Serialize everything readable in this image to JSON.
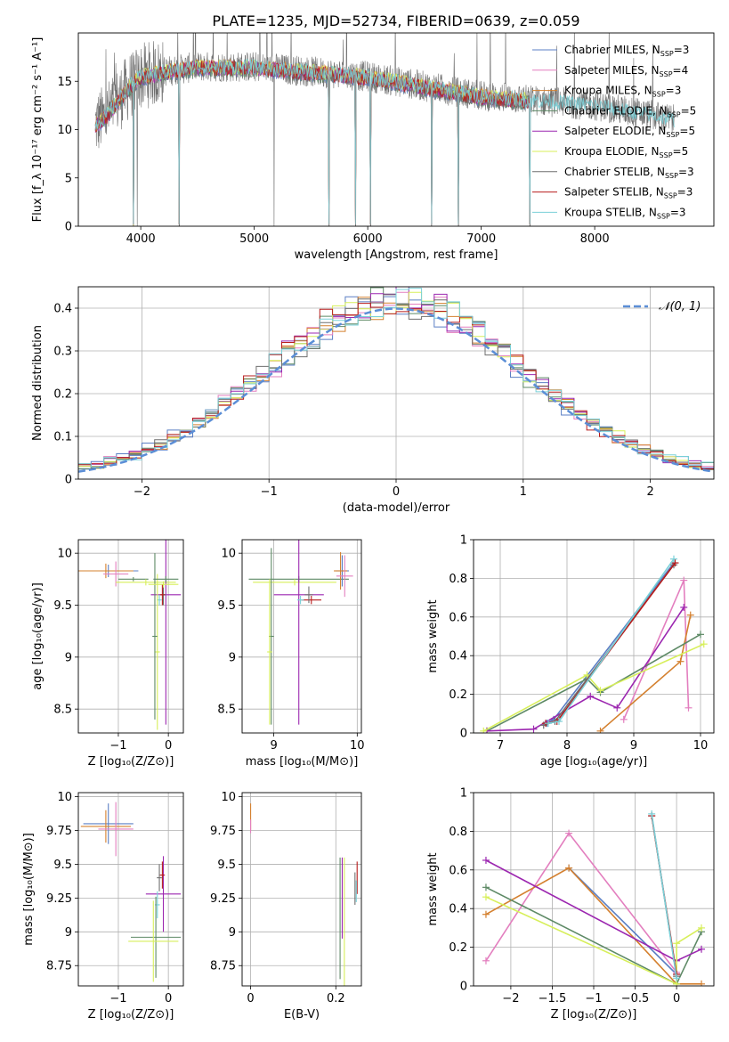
{
  "figure_title": "PLATE=1235, MJD=52734, FIBERID=0639, z=0.059",
  "colors": {
    "Chabrier MILES": "#5b7fc4",
    "Salpeter MILES": "#e37fbf",
    "Kroupa MILES": "#d4802f",
    "Chabrier ELODIE": "#5e8a66",
    "Salpeter ELODIE": "#9c27b0",
    "Kroupa ELODIE": "#d7ef5a",
    "Chabrier STELIB": "#6f6f6f",
    "Salpeter STELIB": "#b71c1c",
    "Kroupa STELIB": "#79d0d8",
    "normal": "#5b8ed6",
    "grid": "#b0b0b0"
  },
  "chart_data": [
    {
      "id": "spectrum",
      "type": "line",
      "title": "PLATE=1235, MJD=52734, FIBERID=0639, z=0.059",
      "xlabel": "wavelength [Angstrom, rest frame]",
      "ylabel": "Flux [f_λ 10⁻¹⁷ erg cm⁻² s⁻¹ A⁻¹]",
      "xlim": [
        3450,
        9050
      ],
      "ylim": [
        0,
        20
      ],
      "xticks": [
        4000,
        5000,
        6000,
        7000,
        8000
      ],
      "yticks": [
        0,
        5,
        10,
        15
      ],
      "grid": false,
      "legend_position": "top-right",
      "legend": [
        {
          "base": "Chabrier MILES, N",
          "sub": "SSP",
          "tail": "=3",
          "color_key": "Chabrier MILES"
        },
        {
          "base": "Salpeter MILES, N",
          "sub": "SSP",
          "tail": "=4",
          "color_key": "Salpeter MILES"
        },
        {
          "base": "Kroupa MILES, N",
          "sub": "SSP",
          "tail": "=3",
          "color_key": "Kroupa MILES"
        },
        {
          "base": "Chabrier ELODIE, N",
          "sub": "SSP",
          "tail": "=5",
          "color_key": "Chabrier ELODIE"
        },
        {
          "base": "Salpeter ELODIE, N",
          "sub": "SSP",
          "tail": "=5",
          "color_key": "Salpeter ELODIE"
        },
        {
          "base": "Kroupa ELODIE, N",
          "sub": "SSP",
          "tail": "=5",
          "color_key": "Kroupa ELODIE"
        },
        {
          "base": "Chabrier STELIB, N",
          "sub": "SSP",
          "tail": "=3",
          "color_key": "Chabrier STELIB"
        },
        {
          "base": "Salpeter STELIB, N",
          "sub": "SSP",
          "tail": "=3",
          "color_key": "Salpeter STELIB"
        },
        {
          "base": "Kroupa STELIB, N",
          "sub": "SSP",
          "tail": "=3",
          "color_key": "Kroupa STELIB"
        }
      ],
      "data_envelope": {
        "x": [
          3600,
          3700,
          3800,
          3900,
          4000,
          4200,
          4500,
          5000,
          5500,
          6000,
          6500,
          7000,
          7500,
          8000,
          8500,
          8700
        ],
        "y": [
          10.5,
          11.5,
          13,
          14.5,
          15.5,
          16,
          16.5,
          16.5,
          16,
          15.5,
          14.5,
          13.5,
          13,
          12.5,
          11.5,
          11
        ]
      },
      "models_x_range": [
        3600,
        7430
      ],
      "kroupa_stelib_x_range": [
        3600,
        8700
      ],
      "absorption_lines": [
        3934,
        3969,
        4340,
        5175,
        5660,
        5893,
        6025,
        6563,
        6800,
        7430
      ]
    },
    {
      "id": "residual-distribution",
      "type": "line",
      "xlabel": "(data-model)/error",
      "ylabel": "Normed distribution",
      "xlim": [
        -2.5,
        2.5
      ],
      "ylim": [
        0,
        0.45
      ],
      "xticks": [
        -2,
        -1,
        0,
        1,
        2
      ],
      "yticks": [
        0.0,
        0.1,
        0.2,
        0.3,
        0.4
      ],
      "grid": true,
      "legend_position": "top-right",
      "normal_curve": {
        "label": "𝒩(0, 1)",
        "mean": 0,
        "sigma": 1,
        "style": "dashed"
      },
      "histogram": {
        "bin_width": 0.1,
        "range": [
          -2.5,
          2.5
        ],
        "follows": "gaussian with per-series scatter"
      }
    },
    {
      "id": "age-vs-Z",
      "type": "scatter",
      "xlabel": "Z [log₁₀(Z/Z⊙)]",
      "ylabel": "age  [log₁₀(age/yr)]",
      "xlim": [
        -1.8,
        0.3
      ],
      "ylim": [
        8.27,
        10.13
      ],
      "xticks": [
        -1,
        0
      ],
      "yticks": [
        8.5,
        9.0,
        9.5,
        10.0
      ],
      "grid": true,
      "errorbars": [
        {
          "series": "Chabrier MILES",
          "x": -1.2,
          "xerr": 0.6,
          "y": 9.83,
          "yerr": 0.06
        },
        {
          "series": "Kroupa MILES",
          "x": -1.25,
          "xerr": 0.55,
          "y": 9.83,
          "yerr": 0.07
        },
        {
          "series": "Salpeter MILES",
          "x": -1.05,
          "xerr": 0.25,
          "y": 9.8,
          "yerr": 0.12
        },
        {
          "series": "Chabrier ELODIE",
          "x": -0.7,
          "xerr": 0.3,
          "y": 9.75,
          "yerr": 0.02
        },
        {
          "series": "Kroupa ELODIE",
          "x": -0.45,
          "xerr": 0.6,
          "y": 9.72,
          "yerr": 0.03
        },
        {
          "series": "Salpeter ELODIE",
          "x": -0.05,
          "xerr": 0.3,
          "y": 9.6,
          "yerr": 1.25
        },
        {
          "series": "Chabrier STELIB",
          "x": -0.1,
          "xerr": 0.05,
          "y": 9.6,
          "yerr": 0.1
        },
        {
          "series": "Salpeter STELIB",
          "x": -0.12,
          "xerr": 0.05,
          "y": 9.6,
          "yerr": 0.1
        },
        {
          "series": "Kroupa STELIB",
          "x": -0.18,
          "xerr": 0.05,
          "y": 9.55,
          "yerr": 0.05
        },
        {
          "series": "Kroupa ELODIE",
          "x": -0.22,
          "xerr": 0.05,
          "y": 9.05,
          "yerr": 0.75
        },
        {
          "series": "Chabrier ELODIE",
          "x": -0.27,
          "xerr": 0.05,
          "y": 9.2,
          "yerr": 0.8
        },
        {
          "series": "Chabrier ELODIE",
          "x": -0.05,
          "xerr": 0.25,
          "y": 9.75,
          "yerr": 0.03
        },
        {
          "series": "Kroupa ELODIE",
          "x": -0.1,
          "xerr": 0.3,
          "y": 9.7,
          "yerr": 0.03
        }
      ]
    },
    {
      "id": "age-vs-mass",
      "type": "scatter",
      "xlabel": "mass [log₁₀(M/M⊙)]",
      "xlim": [
        8.62,
        10.05
      ],
      "ylim": [
        8.27,
        10.13
      ],
      "xticks": [
        9,
        10
      ],
      "yticks": [
        8.5,
        9.0,
        9.5,
        10.0
      ],
      "grid": true,
      "errorbars": [
        {
          "series": "Chabrier ELODIE",
          "x": 9.3,
          "xerr": 0.6,
          "y": 9.75,
          "yerr": 0.03
        },
        {
          "series": "Kroupa ELODIE",
          "x": 9.25,
          "xerr": 0.5,
          "y": 9.72,
          "yerr": 0.03
        },
        {
          "series": "Chabrier ELODIE",
          "x": 8.97,
          "xerr": 0.03,
          "y": 9.2,
          "yerr": 0.85
        },
        {
          "series": "Kroupa ELODIE",
          "x": 8.95,
          "xerr": 0.03,
          "y": 9.05,
          "yerr": 0.7
        },
        {
          "series": "Salpeter ELODIE",
          "x": 9.3,
          "xerr": 0.3,
          "y": 9.6,
          "yerr": 1.25
        },
        {
          "series": "Salpeter STELIB",
          "x": 9.45,
          "xerr": 0.12,
          "y": 9.55,
          "yerr": 0.04
        },
        {
          "series": "Chabrier STELIB",
          "x": 9.42,
          "xerr": 0.05,
          "y": 9.6,
          "yerr": 0.08
        },
        {
          "series": "Kroupa STELIB",
          "x": 9.32,
          "xerr": 0.04,
          "y": 9.55,
          "yerr": 0.04
        },
        {
          "series": "Chabrier MILES",
          "x": 9.82,
          "xerr": 0.08,
          "y": 9.83,
          "yerr": 0.15
        },
        {
          "series": "Kroupa MILES",
          "x": 9.8,
          "xerr": 0.08,
          "y": 9.83,
          "yerr": 0.18
        },
        {
          "series": "Salpeter MILES",
          "x": 9.85,
          "xerr": 0.1,
          "y": 9.78,
          "yerr": 0.2
        }
      ]
    },
    {
      "id": "mass-weight-vs-age",
      "type": "line",
      "xlabel": "age  [log₁₀(age/yr)]",
      "ylabel": "mass weight",
      "xlim": [
        6.6,
        10.2
      ],
      "ylim": [
        0,
        1
      ],
      "xticks": [
        7,
        8,
        9,
        10
      ],
      "yticks": [
        0.0,
        0.2,
        0.4,
        0.6,
        0.8,
        1.0
      ],
      "grid": true,
      "series": [
        {
          "name": "Chabrier MILES",
          "x": [
            7.7,
            7.8,
            9.6
          ],
          "y": [
            0.05,
            0.07,
            0.88
          ]
        },
        {
          "name": "Salpeter MILES",
          "x": [
            8.85,
            9.75,
            9.82
          ],
          "y": [
            0.07,
            0.79,
            0.13
          ]
        },
        {
          "name": "Kroupa MILES",
          "x": [
            8.5,
            9.7,
            9.85
          ],
          "y": [
            0.01,
            0.37,
            0.61
          ]
        },
        {
          "name": "Chabrier ELODIE",
          "x": [
            6.8,
            8.3,
            8.5,
            10.0
          ],
          "y": [
            0.01,
            0.28,
            0.21,
            0.51
          ]
        },
        {
          "name": "Salpeter ELODIE",
          "x": [
            6.8,
            7.5,
            8.35,
            8.75,
            9.75
          ],
          "y": [
            0.01,
            0.02,
            0.19,
            0.13,
            0.65
          ]
        },
        {
          "name": "Kroupa ELODIE",
          "x": [
            6.75,
            8.3,
            8.5,
            10.05
          ],
          "y": [
            0.01,
            0.3,
            0.22,
            0.46
          ]
        },
        {
          "name": "Chabrier STELIB",
          "x": [
            7.65,
            7.82,
            9.6
          ],
          "y": [
            0.04,
            0.06,
            0.87
          ]
        },
        {
          "name": "Salpeter STELIB",
          "x": [
            7.68,
            7.85,
            9.62
          ],
          "y": [
            0.05,
            0.06,
            0.88
          ]
        },
        {
          "name": "Kroupa STELIB",
          "x": [
            7.72,
            7.88,
            9.6
          ],
          "y": [
            0.05,
            0.06,
            0.9
          ]
        }
      ]
    },
    {
      "id": "mass-vs-Z",
      "type": "scatter",
      "xlabel": "Z [log₁₀(Z/Z⊙)]",
      "ylabel": "mass [log₁₀(M/M⊙)]",
      "xlim": [
        -1.8,
        0.3
      ],
      "ylim": [
        8.6,
        10.03
      ],
      "xticks": [
        -1,
        0
      ],
      "yticks": [
        8.75,
        9.0,
        9.25,
        9.5,
        9.75,
        10.0
      ],
      "grid": true,
      "errorbars": [
        {
          "series": "Chabrier MILES",
          "x": -1.2,
          "xerr": 0.5,
          "y": 9.8,
          "yerr": 0.15
        },
        {
          "series": "Kroupa MILES",
          "x": -1.25,
          "xerr": 0.5,
          "y": 9.78,
          "yerr": 0.12
        },
        {
          "series": "Salpeter MILES",
          "x": -1.05,
          "xerr": 0.35,
          "y": 9.76,
          "yerr": 0.2
        },
        {
          "series": "Salpeter ELODIE",
          "x": -0.1,
          "xerr": 0.35,
          "y": 9.28,
          "yerr": 0.28
        },
        {
          "series": "Salpeter STELIB",
          "x": -0.12,
          "xerr": 0.05,
          "y": 9.42,
          "yerr": 0.1
        },
        {
          "series": "Chabrier STELIB",
          "x": -0.18,
          "xerr": 0.05,
          "y": 9.4,
          "yerr": 0.1
        },
        {
          "series": "Kroupa STELIB",
          "x": -0.22,
          "xerr": 0.05,
          "y": 9.2,
          "yerr": 0.1
        },
        {
          "series": "Chabrier ELODIE",
          "x": -0.25,
          "xerr": 0.5,
          "y": 8.96,
          "yerr": 0.3
        },
        {
          "series": "Kroupa ELODIE",
          "x": -0.3,
          "xerr": 0.5,
          "y": 8.93,
          "yerr": 0.3
        }
      ]
    },
    {
      "id": "mass-vs-EBV",
      "type": "scatter",
      "xlabel": "E(B-V)",
      "xlim": [
        -0.02,
        0.26
      ],
      "ylim": [
        8.6,
        10.03
      ],
      "xticks": [
        0.0,
        0.2
      ],
      "yticks": [
        8.75,
        9.0,
        9.25,
        9.5,
        9.75,
        10.0
      ],
      "grid": true,
      "errorbars": [
        {
          "series": "Kroupa MILES",
          "x": 0.0,
          "xerr": 0.0,
          "y": 9.85,
          "yerr": 0.1
        },
        {
          "series": "Salpeter MILES",
          "x": 0.0,
          "xerr": 0.0,
          "y": 9.78,
          "yerr": 0.05
        },
        {
          "series": "Chabrier ELODIE",
          "x": 0.21,
          "xerr": 0.0,
          "y": 9.1,
          "yerr": 0.45
        },
        {
          "series": "Salpeter ELODIE",
          "x": 0.215,
          "xerr": 0.0,
          "y": 9.25,
          "yerr": 0.3
        },
        {
          "series": "Kroupa ELODIE",
          "x": 0.22,
          "xerr": 0.0,
          "y": 9.05,
          "yerr": 0.5
        },
        {
          "series": "Salpeter STELIB",
          "x": 0.25,
          "xerr": 0.0,
          "y": 9.4,
          "yerr": 0.12
        },
        {
          "series": "Chabrier STELIB",
          "x": 0.245,
          "xerr": 0.0,
          "y": 9.32,
          "yerr": 0.12
        },
        {
          "series": "Kroupa STELIB",
          "x": 0.248,
          "xerr": 0.0,
          "y": 9.3,
          "yerr": 0.08
        }
      ]
    },
    {
      "id": "mass-weight-vs-Z",
      "type": "line",
      "xlabel": "Z [log₁₀(Z/Z⊙)]",
      "ylabel": "mass weight",
      "xlim": [
        -2.45,
        0.45
      ],
      "ylim": [
        0,
        1
      ],
      "xticks": [
        -2.0,
        -1.5,
        -1.0,
        -0.5,
        0.0
      ],
      "yticks": [
        0.0,
        0.2,
        0.4,
        0.6,
        0.8,
        1.0
      ],
      "grid": true,
      "series": [
        {
          "name": "Chabrier MILES",
          "x": [
            -1.3,
            0.0
          ],
          "y": [
            0.61,
            0.06
          ]
        },
        {
          "name": "Salpeter MILES",
          "x": [
            -2.3,
            -1.3,
            0.0
          ],
          "y": [
            0.13,
            0.79,
            0.07
          ]
        },
        {
          "name": "Kroupa MILES",
          "x": [
            -2.3,
            -1.3,
            0.0,
            0.3
          ],
          "y": [
            0.37,
            0.61,
            0.01,
            0.01
          ]
        },
        {
          "name": "Chabrier ELODIE",
          "x": [
            -2.3,
            0.0,
            0.3
          ],
          "y": [
            0.51,
            0.01,
            0.28
          ]
        },
        {
          "name": "Salpeter ELODIE",
          "x": [
            -2.3,
            0.0,
            0.3
          ],
          "y": [
            0.65,
            0.13,
            0.19
          ]
        },
        {
          "name": "Kroupa ELODIE",
          "x": [
            -2.3,
            0.0,
            0.0,
            0.3
          ],
          "y": [
            0.46,
            0.01,
            0.22,
            0.3
          ]
        },
        {
          "name": "Chabrier STELIB",
          "x": [
            -0.3,
            0.0
          ],
          "y": [
            0.88,
            0.05
          ]
        },
        {
          "name": "Salpeter STELIB",
          "x": [
            -0.3,
            0.0
          ],
          "y": [
            0.88,
            0.06
          ]
        },
        {
          "name": "Kroupa STELIB",
          "x": [
            -0.3,
            0.0
          ],
          "y": [
            0.89,
            0.04
          ]
        }
      ]
    }
  ]
}
